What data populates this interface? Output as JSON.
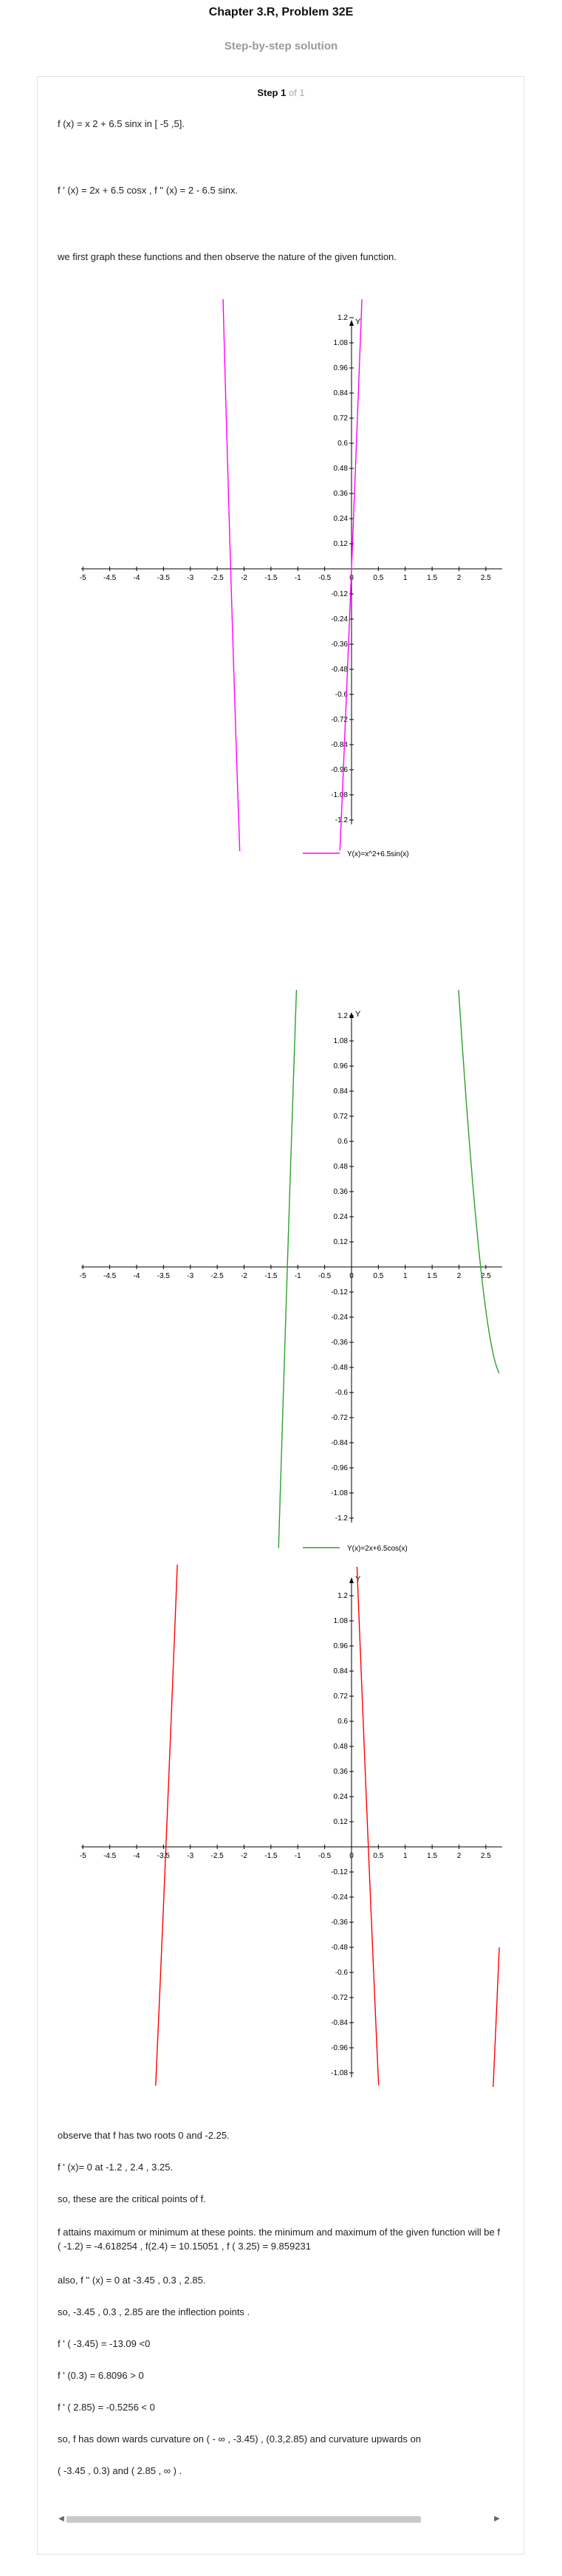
{
  "header": {
    "title": "Chapter 3.R, Problem 32E",
    "subtitle": "Step-by-step solution"
  },
  "step": {
    "label": "Step 1",
    "of": "of 1"
  },
  "lines": {
    "l1": "f (x) = x 2 + 6.5 sinx   in  [ -5 ,5].",
    "l2": "f ' (x) = 2x + 6.5 cosx  , f '' (x) = 2 - 6.5 sinx.",
    "l3": "we first graph these functions and then observe the nature of the given function.",
    "l4": "observe that f has two roots 0 and -2.25.",
    "l5": "f ' (x)= 0 at -1.2 , 2.4 , 3.25.",
    "l6": "so, these are the critical points of f.",
    "l7": " f attains maximum or minimum at these points. the minimum and maximum of the given function will be f ( -1.2) = -4.618254 , f(2.4) = 10.15051 , f ( 3.25) = 9.859231",
    "l8": "also, f '' (x) = 0 at -3.45 , 0.3 , 2.85.",
    "l9": "so,  -3.45 , 0.3 , 2.85 are the inflection points .",
    "l10": " f ' ( -3.45) = -13.09 <0",
    "l11": " f ' (0.3) = 6.8096 > 0",
    "l12": "f ' ( 2.85) = -0.5256 < 0",
    "l13": "so, f has down wards curvature  on ( - ∞ , -3.45) , (0.3,2.85)  and curvature upwards on",
    "l14": " ( -3.45 , 0.3) and  ( 2.85 , ∞ ) ."
  },
  "chart_data": [
    {
      "type": "line",
      "axis_label_y": "Y",
      "xticks": [
        "-5",
        "-4.5",
        "-4",
        "-3.5",
        "-3",
        "-2.5",
        "-2",
        "-1.5",
        "-1",
        "-0.5",
        "0",
        "0.5",
        "1",
        "1.5",
        "2",
        "2.5"
      ],
      "yticks": [
        "1.2",
        "1.08",
        "0.96",
        "0.84",
        "0.72",
        "0.6",
        "0.48",
        "0.36",
        "0.24",
        "0.12",
        "-0.12",
        "-0.24",
        "-0.36",
        "-0.48",
        "-0.6",
        "-0.72",
        "-0.84",
        "-0.96",
        "-1.08",
        "-1.2"
      ],
      "xlim": [
        -5,
        2.75
      ],
      "ylim": [
        -1.2,
        1.2
      ],
      "series": [
        {
          "name": "Y(x)=x^2+6.5sin(x)",
          "color": "#ff00ff",
          "function": "x^2+6.5sin(x)"
        }
      ],
      "legend": "bottom"
    },
    {
      "type": "line",
      "axis_label_y": "Y",
      "xticks": [
        "-5",
        "-4.5",
        "-4",
        "-3.5",
        "-3",
        "-2.5",
        "-2",
        "-1.5",
        "-1",
        "-0.5",
        "0",
        "0.5",
        "1",
        "1.5",
        "2",
        "2.5"
      ],
      "yticks": [
        "1.2",
        "1.08",
        "0.96",
        "0.84",
        "0.72",
        "0.6",
        "0.48",
        "0.36",
        "0.24",
        "0.12",
        "-0.12",
        "-0.24",
        "-0.36",
        "-0.48",
        "-0.6",
        "-0.72",
        "-0.84",
        "-0.96",
        "-1.08",
        "-1.2"
      ],
      "xlim": [
        -5,
        2.75
      ],
      "ylim": [
        -1.2,
        1.2
      ],
      "series": [
        {
          "name": "Y(x)=2x+6.5cos(x)",
          "color": "#2ca02c",
          "function": "2x+6.5cos(x)"
        }
      ],
      "legend": "bottom"
    },
    {
      "type": "line",
      "axis_label_y": "Y",
      "xticks": [
        "-5",
        "-4.5",
        "-4",
        "-3.5",
        "-3",
        "-2.5",
        "-2",
        "-1.5",
        "-1",
        "-0.5",
        "0",
        "0.5",
        "1",
        "1.5",
        "2",
        "2.5"
      ],
      "yticks": [
        "1.2",
        "1.08",
        "0.96",
        "0.84",
        "0.72",
        "0.6",
        "0.48",
        "0.36",
        "0.24",
        "0.12",
        "-0.12",
        "-0.24",
        "-0.36",
        "-0.48",
        "-0.6",
        "-0.72",
        "-0.84",
        "-0.96",
        "-1.08"
      ],
      "xlim": [
        -5,
        2.75
      ],
      "ylim": [
        -1.08,
        1.2
      ],
      "series": [
        {
          "name": "",
          "color": "#ff0000",
          "function": "2-6.5sin(x)"
        }
      ],
      "legend": "none"
    }
  ]
}
